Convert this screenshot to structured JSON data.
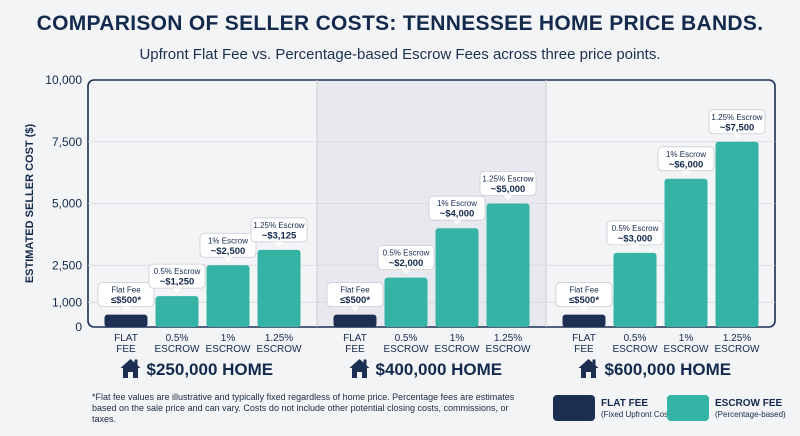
{
  "header": {
    "title": "COMPARISON OF SELLER COSTS: TENNESSEE HOME PRICE BANDS.",
    "subtitle": "Upfront Flat Fee vs. Percentage-based Escrow Fees across three price points."
  },
  "chart_data": {
    "type": "bar",
    "ylabel": "ESTIMATED SELLER COST ($)",
    "ylim": [
      0,
      10000
    ],
    "y_ticks": [
      {
        "value": 0,
        "label": "0"
      },
      {
        "value": 1000,
        "label": "1,000"
      },
      {
        "value": 2500,
        "label": "2,500"
      },
      {
        "value": 5000,
        "label": "5,000"
      },
      {
        "value": 7500,
        "label": "7,500"
      },
      {
        "value": 10000,
        "label": "10,000"
      }
    ],
    "grid": true,
    "colors": {
      "flat": "#1c2f52",
      "escrow": "#35b3a5"
    },
    "groups": [
      {
        "label": "$250,000 HOME",
        "bars": [
          {
            "category": "FLAT FEE",
            "kind": "flat",
            "value": 500,
            "callout": [
              "Flat Fee",
              "≤$500*"
            ]
          },
          {
            "category": "0.5% ESCROW",
            "kind": "escrow",
            "value": 1250,
            "callout": [
              "0.5% Escrow",
              "~$1,250"
            ]
          },
          {
            "category": "1% ESCROW",
            "kind": "escrow",
            "value": 2500,
            "callout": [
              "1% Escrow",
              "~$2,500"
            ]
          },
          {
            "category": "1.25% ESCROW",
            "kind": "escrow",
            "value": 3125,
            "callout": [
              "1.25% Escrow",
              "~$3,125"
            ]
          }
        ]
      },
      {
        "label": "$400,000 HOME",
        "bars": [
          {
            "category": "FLAT FEE",
            "kind": "flat",
            "value": 500,
            "callout": [
              "Flat Fee",
              "≤$500*"
            ]
          },
          {
            "category": "0.5% ESCROW",
            "kind": "escrow",
            "value": 2000,
            "callout": [
              "0.5% Escrow",
              "~$2,000"
            ]
          },
          {
            "category": "1% ESCROW",
            "kind": "escrow",
            "value": 4000,
            "callout": [
              "1% Escrow",
              "~$4,000"
            ]
          },
          {
            "category": "1.25% ESCROW",
            "kind": "escrow",
            "value": 5000,
            "callout": [
              "1.25% Escrow",
              "~$5,000"
            ]
          }
        ]
      },
      {
        "label": "$600,000 HOME",
        "bars": [
          {
            "category": "FLAT FEE",
            "kind": "flat",
            "value": 500,
            "callout": [
              "Flat Fee",
              "≤$500*"
            ]
          },
          {
            "category": "0.5% ESCROW",
            "kind": "escrow",
            "value": 3000,
            "callout": [
              "0.5% Escrow",
              "~$3,000"
            ]
          },
          {
            "category": "1% ESCROW",
            "kind": "escrow",
            "value": 6000,
            "callout": [
              "1% Escrow",
              "~$6,000"
            ]
          },
          {
            "category": "1.25% ESCROW",
            "kind": "escrow",
            "value": 7500,
            "callout": [
              "1.25% Escrow",
              "~$7,500"
            ]
          }
        ]
      }
    ],
    "legend": [
      {
        "kind": "flat",
        "title": "FLAT FEE",
        "desc": "(Fixed Upfront Cost)"
      },
      {
        "kind": "escrow",
        "title": "ESCROW FEE",
        "desc": "(Percentage-based)"
      }
    ],
    "legend_placement": "bottom-right"
  },
  "group_icon": "house-icon",
  "footnote": "*Flat fee values are illustrative and typically fixed regardless of home price. Percentage fees are estimates based on the sale price and can vary.  Costs do not include other potential closing costs, commissions, or taxes."
}
